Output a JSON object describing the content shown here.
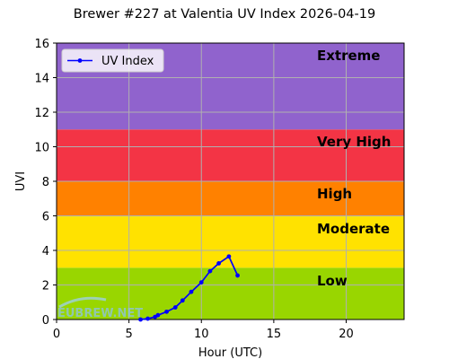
{
  "chart_data": {
    "type": "line",
    "title": "Brewer #227 at Valentia UV Index 2026-04-19",
    "xlabel": "Hour (UTC)",
    "ylabel": "UVI",
    "xlim": [
      0,
      24
    ],
    "ylim": [
      0,
      16
    ],
    "x_ticks": [
      0,
      5,
      10,
      15,
      20
    ],
    "y_ticks": [
      0,
      2,
      4,
      6,
      8,
      10,
      12,
      14,
      16
    ],
    "grid": true,
    "legend": {
      "placement": "top-left",
      "entries": [
        "UV Index"
      ]
    },
    "bands": [
      {
        "label": "Low",
        "from": 0,
        "to": 3,
        "color": "#99d600"
      },
      {
        "label": "Moderate",
        "from": 3,
        "to": 6,
        "color": "#ffe200"
      },
      {
        "label": "High",
        "from": 6,
        "to": 8,
        "color": "#ff8100"
      },
      {
        "label": "Very High",
        "from": 8,
        "to": 11,
        "color": "#f33445"
      },
      {
        "label": "Extreme",
        "from": 11,
        "to": 16,
        "color": "#9063cd"
      }
    ],
    "series": [
      {
        "name": "UV Index",
        "color": "#0000ff",
        "x": [
          5.8,
          6.3,
          6.8,
          7.0,
          7.6,
          8.2,
          8.7,
          9.3,
          10.0,
          10.6,
          11.2,
          11.9,
          12.5
        ],
        "y": [
          0.0,
          0.05,
          0.15,
          0.25,
          0.45,
          0.7,
          1.1,
          1.6,
          2.15,
          2.8,
          3.25,
          3.65,
          2.55
        ]
      }
    ],
    "watermark": {
      "text": "EUBREW.NET",
      "color": "#8ec3e6"
    }
  }
}
